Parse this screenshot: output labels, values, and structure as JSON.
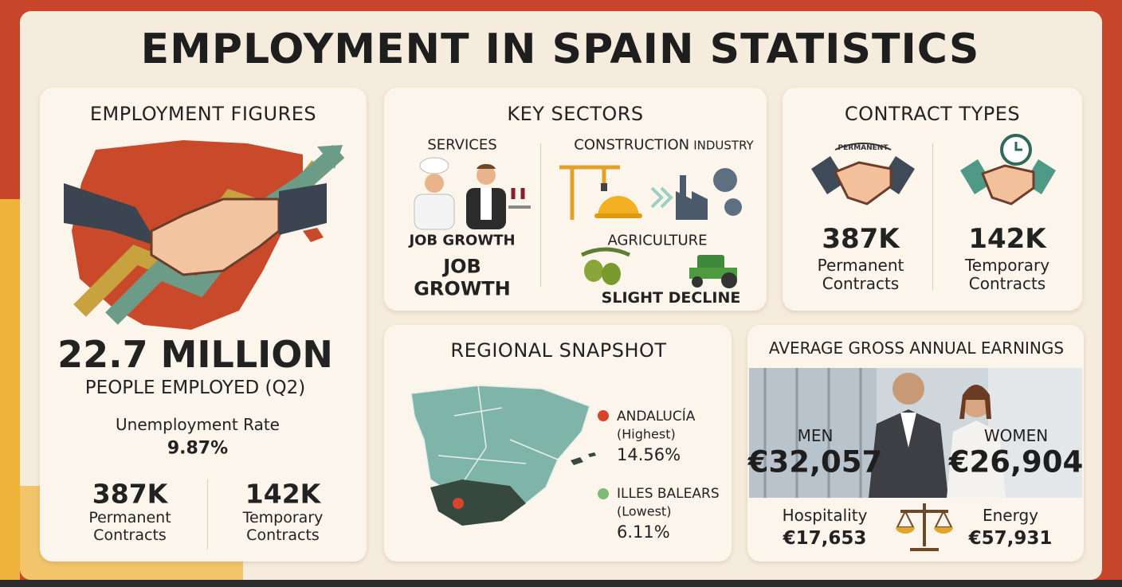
{
  "title": "EMPLOYMENT IN SPAIN STATISTICS",
  "employment_figures": {
    "heading": "EMPLOYMENT FIGURES",
    "total": "22.7 MILLION",
    "total_caption": "PEOPLE EMPLOYED (Q2)",
    "unemployment_label": "Unemployment Rate",
    "unemployment_value": "9.87%",
    "contracts": [
      {
        "value": "387K",
        "label": "Permanent Contracts"
      },
      {
        "value": "142K",
        "label": "Temporary Contracts"
      }
    ]
  },
  "key_sectors": {
    "heading": "KEY SECTORS",
    "services": {
      "label": "SERVICES",
      "trend": "JOB GROWTH",
      "trend_large": "JOB GROWTH"
    },
    "construction": {
      "label": "CONSTRUCTION",
      "label_suffix": "INDUSTRY"
    },
    "agriculture": {
      "label": "AGRICULTURE",
      "trend": "SLIGHT DECLINE"
    }
  },
  "contract_types": {
    "heading": "CONTRACT TYPES",
    "badge": "PERMANENT",
    "items": [
      {
        "value": "387K",
        "label": "Permanent Contracts"
      },
      {
        "value": "142K",
        "label": "Temporary Contracts"
      }
    ]
  },
  "regional_snapshot": {
    "heading": "REGIONAL SNAPSHOT",
    "regions": [
      {
        "name": "ANDALUCÍA",
        "note": "(Highest)",
        "value": "14.56%"
      },
      {
        "name": "ILLES BALEARS",
        "note": "(Lowest)",
        "value": "6.11%"
      }
    ]
  },
  "earnings": {
    "heading": "AVERAGE GROSS ANNUAL EARNINGS",
    "men": {
      "label": "MEN",
      "value": "€32,057"
    },
    "women": {
      "label": "WOMEN",
      "value": "€26,904"
    },
    "sectors": [
      {
        "label": "Hospitality",
        "value": "€17,653"
      },
      {
        "label": "Energy",
        "value": "€57,931"
      }
    ]
  }
}
